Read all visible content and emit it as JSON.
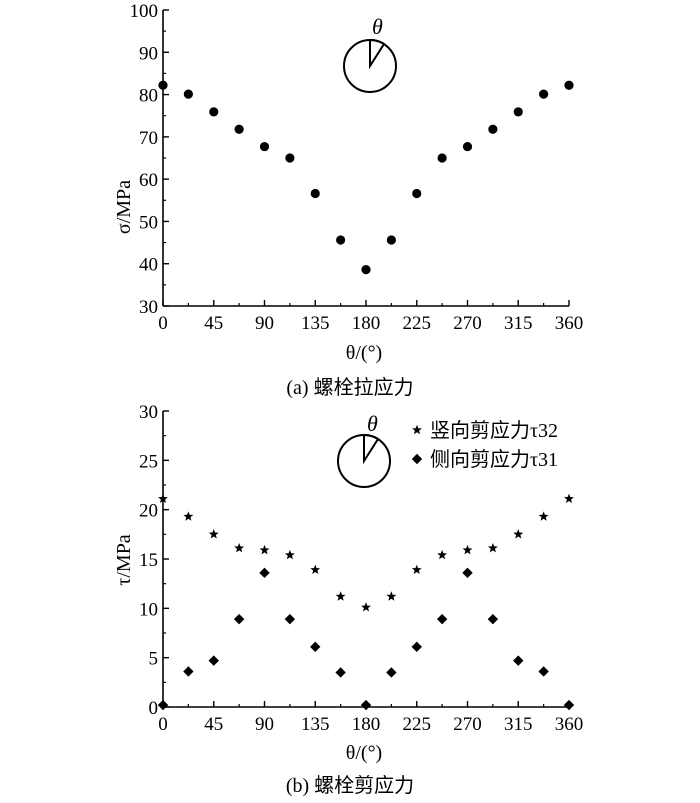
{
  "chart_data": [
    {
      "type": "scatter",
      "caption": "(a) 螺栓拉应力",
      "xlabel": "θ/(°)",
      "ylabel": "σ/MPa",
      "xlim": [
        0,
        360
      ],
      "ylim": [
        30,
        100
      ],
      "xticks": [
        0,
        45,
        90,
        135,
        180,
        225,
        270,
        315,
        360
      ],
      "yticks": [
        30,
        40,
        50,
        60,
        70,
        80,
        90,
        100
      ],
      "series": [
        {
          "marker": "circle",
          "x": [
            0,
            22.5,
            45,
            67.5,
            90,
            112.5,
            135,
            157.5,
            180,
            202.5,
            225,
            247.5,
            270,
            292.5,
            315,
            337.5,
            360
          ],
          "y": [
            82.2,
            80.1,
            75.9,
            71.8,
            67.7,
            65,
            56.6,
            45.6,
            38.6,
            45.6,
            56.6,
            65,
            67.7,
            71.8,
            75.9,
            80.1,
            82.2
          ]
        }
      ],
      "inset": {
        "label": "θ"
      },
      "grid": false
    },
    {
      "type": "scatter",
      "caption": "(b) 螺栓剪应力",
      "xlabel": "θ/(°)",
      "ylabel": "τ/MPa",
      "xlim": [
        0,
        360
      ],
      "ylim": [
        0,
        30
      ],
      "xticks": [
        0,
        45,
        90,
        135,
        180,
        225,
        270,
        315,
        360
      ],
      "yticks": [
        0,
        5,
        10,
        15,
        20,
        25,
        30
      ],
      "legend": "top-right",
      "series": [
        {
          "name": "竖向剪应力τ32",
          "marker": "star",
          "x": [
            0,
            22.5,
            45,
            67.5,
            90,
            112.5,
            135,
            157.5,
            180,
            202.5,
            225,
            247.5,
            270,
            292.5,
            315,
            337.5,
            360
          ],
          "y": [
            21.1,
            19.3,
            17.5,
            16.1,
            15.9,
            15.4,
            13.9,
            11.2,
            10.1,
            11.2,
            13.9,
            15.4,
            15.9,
            16.1,
            17.5,
            19.3,
            21.1
          ]
        },
        {
          "name": "侧向剪应力τ31",
          "marker": "diamond",
          "x": [
            0,
            22.5,
            45,
            67.5,
            90,
            112.5,
            135,
            157.5,
            180,
            202.5,
            225,
            247.5,
            270,
            292.5,
            315,
            337.5,
            360
          ],
          "y": [
            0.2,
            3.6,
            4.7,
            8.9,
            13.6,
            8.9,
            6.1,
            3.5,
            0.2,
            3.5,
            6.1,
            8.9,
            13.6,
            8.9,
            4.7,
            3.6,
            0.2
          ]
        }
      ],
      "inset": {
        "label": "θ"
      },
      "grid": false
    }
  ]
}
